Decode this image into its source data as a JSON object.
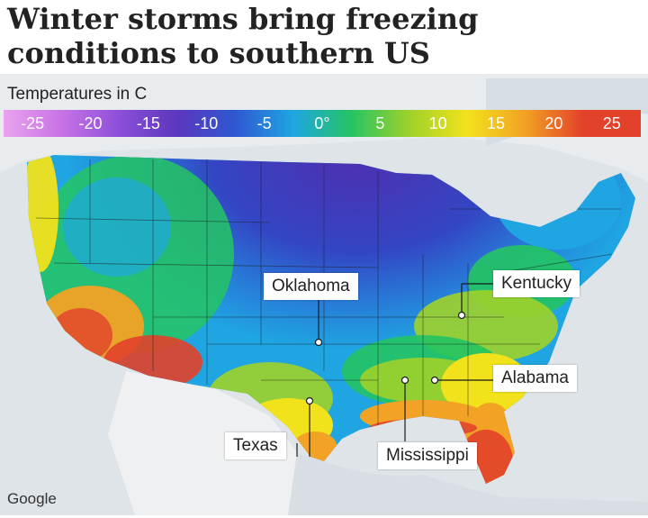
{
  "headline": "Winter storms bring freezing conditions to southern US",
  "legend": {
    "title": "Temperatures in C",
    "ticks": [
      "-25",
      "-20",
      "-15",
      "-10",
      "-5",
      "0°",
      "5",
      "10",
      "15",
      "20",
      "25"
    ],
    "colors": [
      "#e9a3ee",
      "#c873e6",
      "#8c4fd8",
      "#5b37bd",
      "#2f58d2",
      "#1fa6e2",
      "#24c463",
      "#9fd12a",
      "#f2e21b",
      "#f2a224",
      "#e2412a"
    ]
  },
  "places": {
    "oklahoma": "Oklahoma",
    "kentucky": "Kentucky",
    "alabama": "Alabama",
    "texas": "Texas",
    "mississippi": "Mississippi"
  },
  "attribution": "Google"
}
